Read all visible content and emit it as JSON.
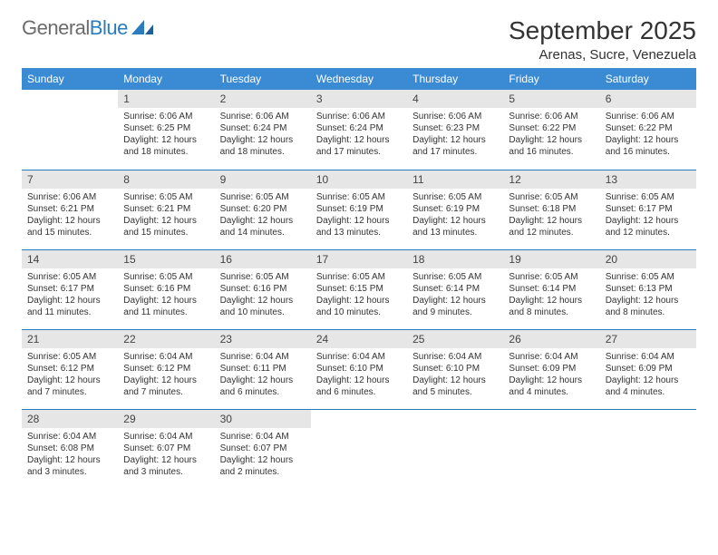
{
  "brand": {
    "part1": "General",
    "part2": "Blue"
  },
  "header": {
    "title": "September 2025",
    "location": "Arenas, Sucre, Venezuela"
  },
  "colors": {
    "header_bg": "#3b8bd4",
    "header_text": "#ffffff",
    "daynum_bg": "#e6e6e6",
    "row_border": "#2b7bbf",
    "brand_gray": "#6b6b6b",
    "brand_blue": "#2b7bbf"
  },
  "days_of_week": [
    "Sunday",
    "Monday",
    "Tuesday",
    "Wednesday",
    "Thursday",
    "Friday",
    "Saturday"
  ],
  "weeks": [
    [
      {
        "n": "",
        "lines": []
      },
      {
        "n": "1",
        "lines": [
          "Sunrise: 6:06 AM",
          "Sunset: 6:25 PM",
          "Daylight: 12 hours and 18 minutes."
        ]
      },
      {
        "n": "2",
        "lines": [
          "Sunrise: 6:06 AM",
          "Sunset: 6:24 PM",
          "Daylight: 12 hours and 18 minutes."
        ]
      },
      {
        "n": "3",
        "lines": [
          "Sunrise: 6:06 AM",
          "Sunset: 6:24 PM",
          "Daylight: 12 hours and 17 minutes."
        ]
      },
      {
        "n": "4",
        "lines": [
          "Sunrise: 6:06 AM",
          "Sunset: 6:23 PM",
          "Daylight: 12 hours and 17 minutes."
        ]
      },
      {
        "n": "5",
        "lines": [
          "Sunrise: 6:06 AM",
          "Sunset: 6:22 PM",
          "Daylight: 12 hours and 16 minutes."
        ]
      },
      {
        "n": "6",
        "lines": [
          "Sunrise: 6:06 AM",
          "Sunset: 6:22 PM",
          "Daylight: 12 hours and 16 minutes."
        ]
      }
    ],
    [
      {
        "n": "7",
        "lines": [
          "Sunrise: 6:06 AM",
          "Sunset: 6:21 PM",
          "Daylight: 12 hours and 15 minutes."
        ]
      },
      {
        "n": "8",
        "lines": [
          "Sunrise: 6:05 AM",
          "Sunset: 6:21 PM",
          "Daylight: 12 hours and 15 minutes."
        ]
      },
      {
        "n": "9",
        "lines": [
          "Sunrise: 6:05 AM",
          "Sunset: 6:20 PM",
          "Daylight: 12 hours and 14 minutes."
        ]
      },
      {
        "n": "10",
        "lines": [
          "Sunrise: 6:05 AM",
          "Sunset: 6:19 PM",
          "Daylight: 12 hours and 13 minutes."
        ]
      },
      {
        "n": "11",
        "lines": [
          "Sunrise: 6:05 AM",
          "Sunset: 6:19 PM",
          "Daylight: 12 hours and 13 minutes."
        ]
      },
      {
        "n": "12",
        "lines": [
          "Sunrise: 6:05 AM",
          "Sunset: 6:18 PM",
          "Daylight: 12 hours and 12 minutes."
        ]
      },
      {
        "n": "13",
        "lines": [
          "Sunrise: 6:05 AM",
          "Sunset: 6:17 PM",
          "Daylight: 12 hours and 12 minutes."
        ]
      }
    ],
    [
      {
        "n": "14",
        "lines": [
          "Sunrise: 6:05 AM",
          "Sunset: 6:17 PM",
          "Daylight: 12 hours and 11 minutes."
        ]
      },
      {
        "n": "15",
        "lines": [
          "Sunrise: 6:05 AM",
          "Sunset: 6:16 PM",
          "Daylight: 12 hours and 11 minutes."
        ]
      },
      {
        "n": "16",
        "lines": [
          "Sunrise: 6:05 AM",
          "Sunset: 6:16 PM",
          "Daylight: 12 hours and 10 minutes."
        ]
      },
      {
        "n": "17",
        "lines": [
          "Sunrise: 6:05 AM",
          "Sunset: 6:15 PM",
          "Daylight: 12 hours and 10 minutes."
        ]
      },
      {
        "n": "18",
        "lines": [
          "Sunrise: 6:05 AM",
          "Sunset: 6:14 PM",
          "Daylight: 12 hours and 9 minutes."
        ]
      },
      {
        "n": "19",
        "lines": [
          "Sunrise: 6:05 AM",
          "Sunset: 6:14 PM",
          "Daylight: 12 hours and 8 minutes."
        ]
      },
      {
        "n": "20",
        "lines": [
          "Sunrise: 6:05 AM",
          "Sunset: 6:13 PM",
          "Daylight: 12 hours and 8 minutes."
        ]
      }
    ],
    [
      {
        "n": "21",
        "lines": [
          "Sunrise: 6:05 AM",
          "Sunset: 6:12 PM",
          "Daylight: 12 hours and 7 minutes."
        ]
      },
      {
        "n": "22",
        "lines": [
          "Sunrise: 6:04 AM",
          "Sunset: 6:12 PM",
          "Daylight: 12 hours and 7 minutes."
        ]
      },
      {
        "n": "23",
        "lines": [
          "Sunrise: 6:04 AM",
          "Sunset: 6:11 PM",
          "Daylight: 12 hours and 6 minutes."
        ]
      },
      {
        "n": "24",
        "lines": [
          "Sunrise: 6:04 AM",
          "Sunset: 6:10 PM",
          "Daylight: 12 hours and 6 minutes."
        ]
      },
      {
        "n": "25",
        "lines": [
          "Sunrise: 6:04 AM",
          "Sunset: 6:10 PM",
          "Daylight: 12 hours and 5 minutes."
        ]
      },
      {
        "n": "26",
        "lines": [
          "Sunrise: 6:04 AM",
          "Sunset: 6:09 PM",
          "Daylight: 12 hours and 4 minutes."
        ]
      },
      {
        "n": "27",
        "lines": [
          "Sunrise: 6:04 AM",
          "Sunset: 6:09 PM",
          "Daylight: 12 hours and 4 minutes."
        ]
      }
    ],
    [
      {
        "n": "28",
        "lines": [
          "Sunrise: 6:04 AM",
          "Sunset: 6:08 PM",
          "Daylight: 12 hours and 3 minutes."
        ]
      },
      {
        "n": "29",
        "lines": [
          "Sunrise: 6:04 AM",
          "Sunset: 6:07 PM",
          "Daylight: 12 hours and 3 minutes."
        ]
      },
      {
        "n": "30",
        "lines": [
          "Sunrise: 6:04 AM",
          "Sunset: 6:07 PM",
          "Daylight: 12 hours and 2 minutes."
        ]
      },
      {
        "n": "",
        "lines": []
      },
      {
        "n": "",
        "lines": []
      },
      {
        "n": "",
        "lines": []
      },
      {
        "n": "",
        "lines": []
      }
    ]
  ]
}
